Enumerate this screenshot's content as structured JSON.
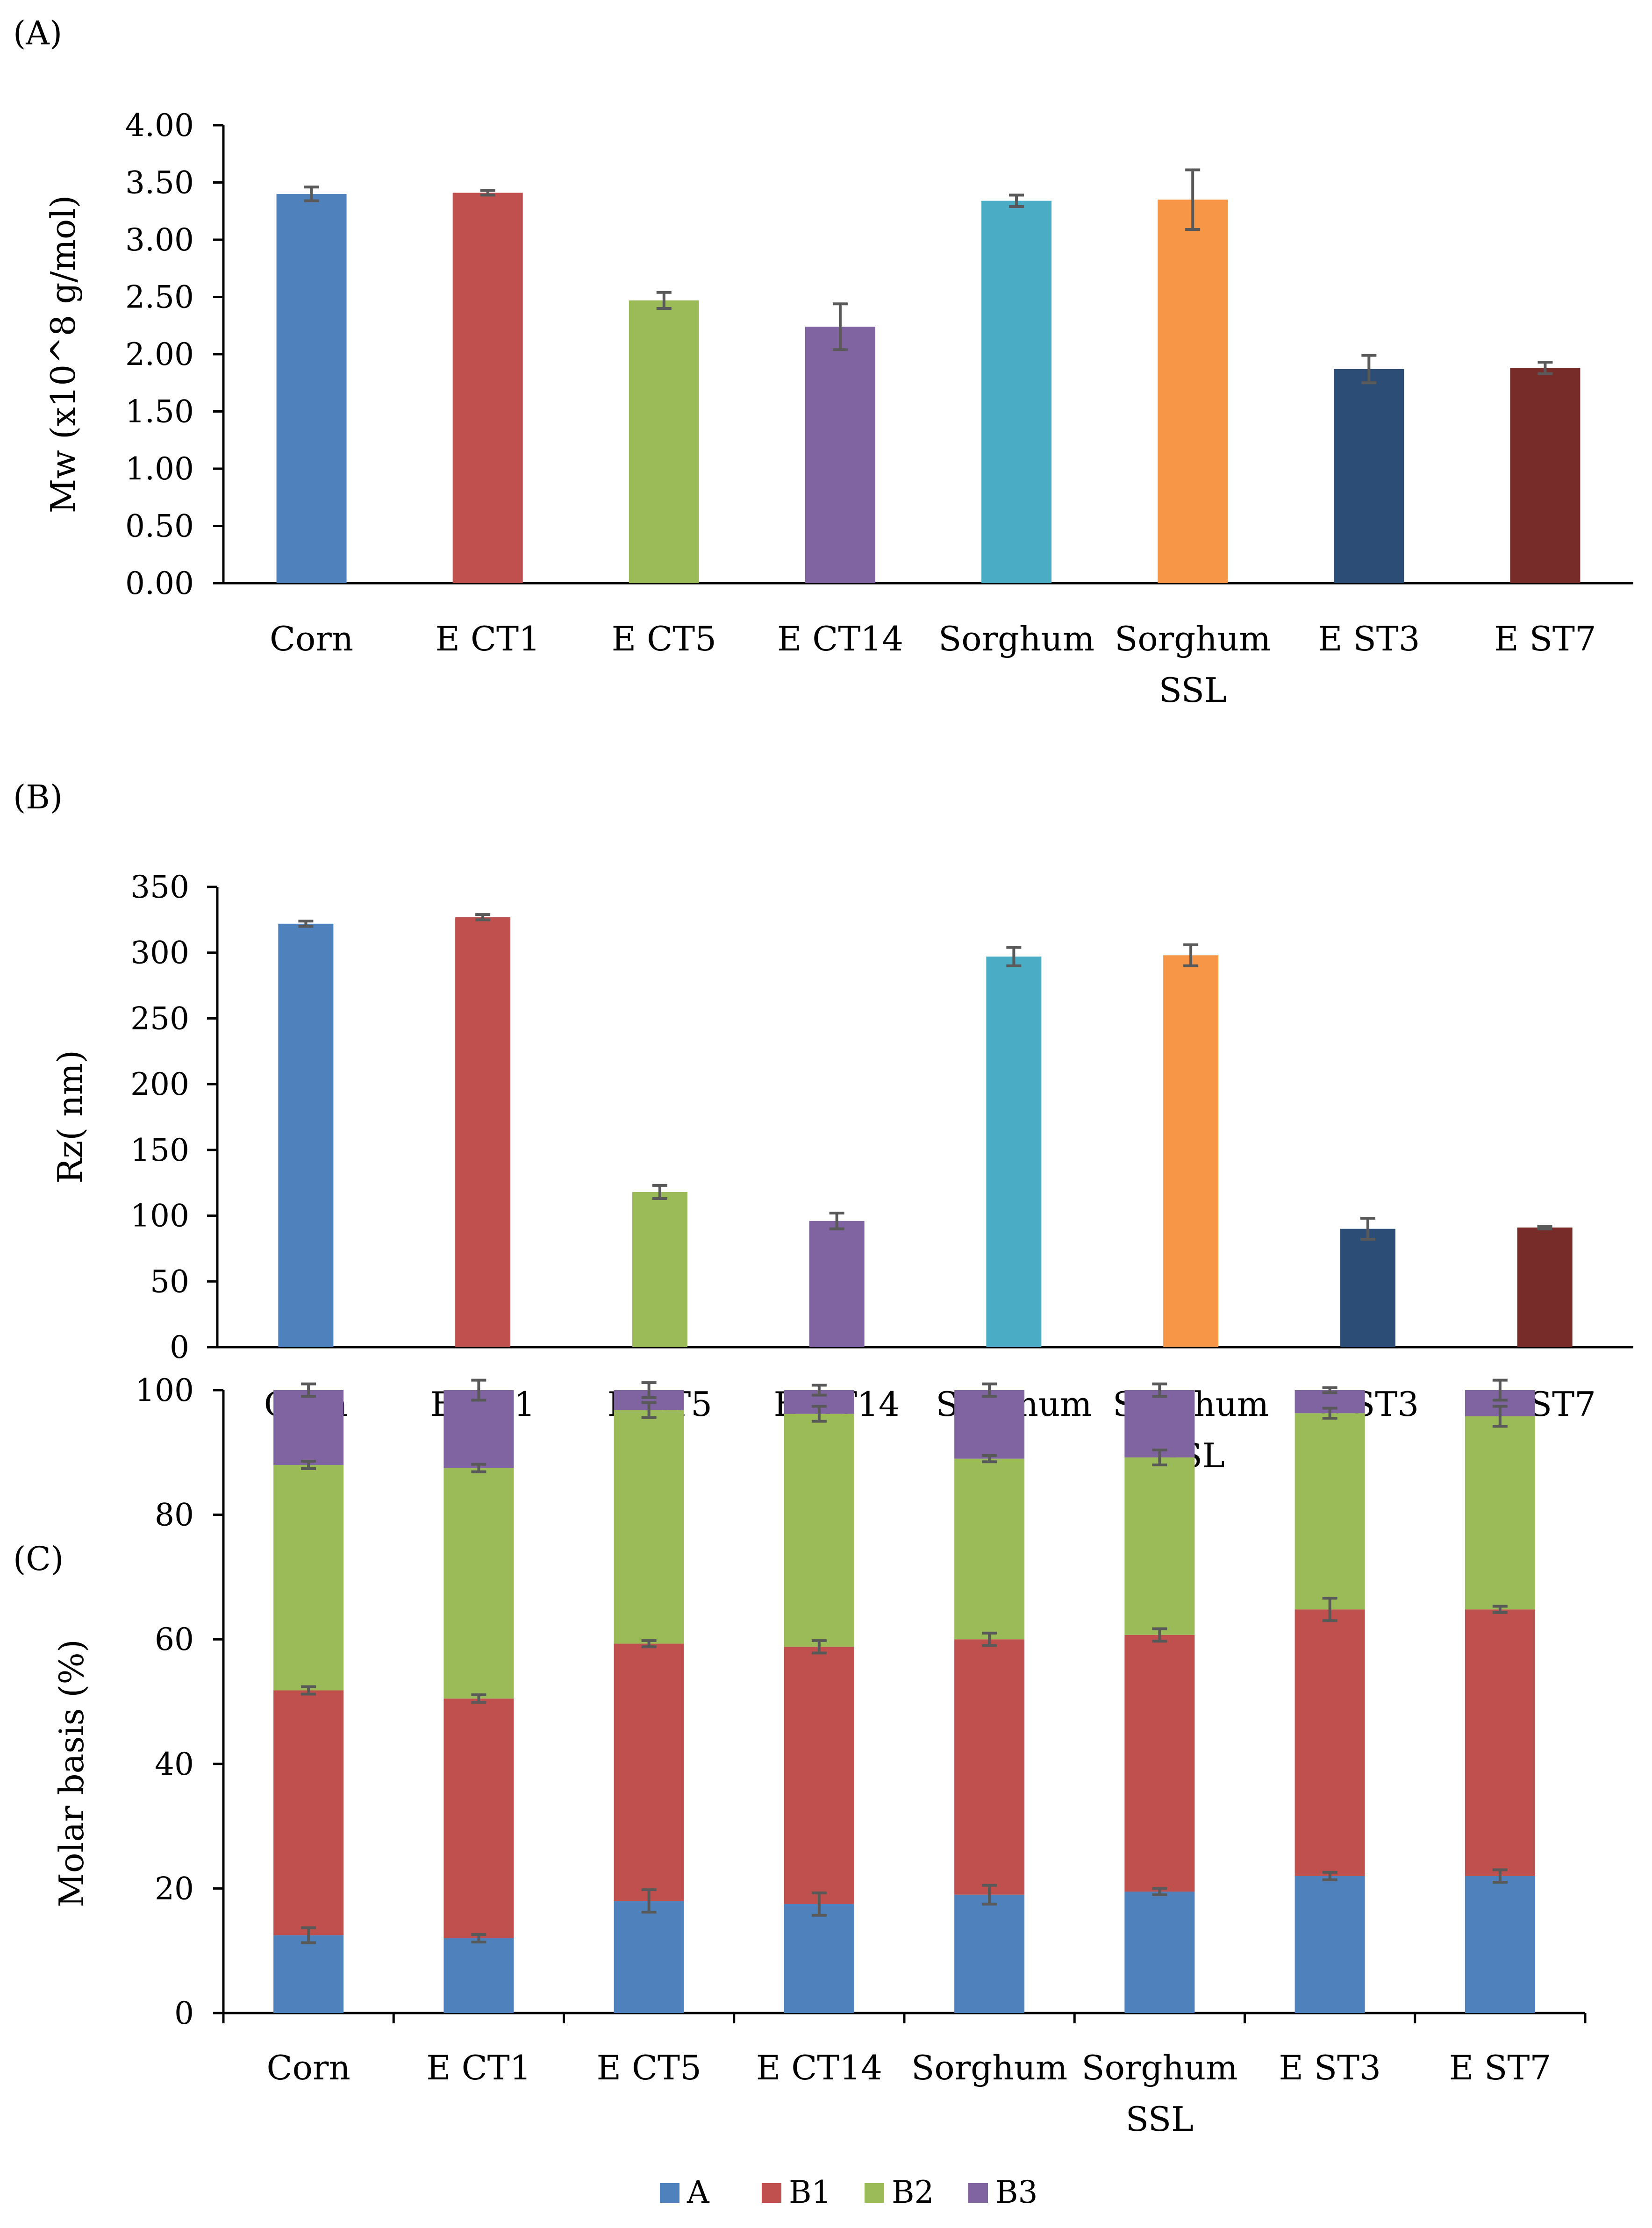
{
  "chart_data": [
    {
      "type": "bar",
      "panel": "(A)",
      "title": "",
      "xlabel": "",
      "ylabel": "Mw (x10^8 g/mol)",
      "ylim": [
        0,
        4
      ],
      "yticks": [
        0,
        0.5,
        1,
        1.5,
        2,
        2.5,
        3,
        3.5,
        4
      ],
      "ytick_labels": [
        "0.00",
        "0.50",
        "1.00",
        "1.50",
        "2.00",
        "2.50",
        "3.00",
        "3.50",
        "4.00"
      ],
      "categories": [
        [
          "Corn"
        ],
        [
          "E CT1"
        ],
        [
          "E CT5"
        ],
        [
          "E CT14"
        ],
        [
          "Sorghum"
        ],
        [
          "Sorghum",
          "SSL"
        ],
        [
          "E ST3"
        ],
        [
          "E ST7"
        ]
      ],
      "values": [
        3.4,
        3.41,
        2.47,
        2.24,
        3.34,
        3.35,
        1.87,
        1.88
      ],
      "errors": [
        0.06,
        0.02,
        0.07,
        0.2,
        0.05,
        0.26,
        0.12,
        0.05
      ],
      "colors": [
        "#4F81BD",
        "#C0504D",
        "#9BBB59",
        "#8064A2",
        "#4BACC6",
        "#F79646",
        "#2C4D75",
        "#772C2A"
      ],
      "grid": false
    },
    {
      "type": "bar",
      "panel": "(B)",
      "title": "",
      "xlabel": "",
      "ylabel": "Rz( nm)",
      "ylim": [
        0,
        350
      ],
      "yticks": [
        0,
        50,
        100,
        150,
        200,
        250,
        300,
        350
      ],
      "ytick_labels": [
        "0",
        "50",
        "100",
        "150",
        "200",
        "250",
        "300",
        "350"
      ],
      "categories": [
        [
          "Corn"
        ],
        [
          "E CT1"
        ],
        [
          "E CT5"
        ],
        [
          "E CT14"
        ],
        [
          "Sorghum"
        ],
        [
          "Sorghum",
          "SSL"
        ],
        [
          "E ST3"
        ],
        [
          "E ST7"
        ]
      ],
      "values": [
        322,
        327,
        118,
        96,
        297,
        298,
        90,
        91
      ],
      "errors": [
        2,
        2,
        5,
        6,
        7,
        8,
        8,
        1
      ],
      "colors": [
        "#4F81BD",
        "#C0504D",
        "#9BBB59",
        "#8064A2",
        "#4BACC6",
        "#F79646",
        "#2C4D75",
        "#772C2A"
      ],
      "grid": false
    },
    {
      "type": "stacked-bar",
      "panel": "(C)",
      "title": "",
      "xlabel": "",
      "ylabel": "Molar basis (%)",
      "ylim": [
        0,
        100
      ],
      "yticks": [
        0,
        20,
        40,
        60,
        80,
        100
      ],
      "ytick_labels": [
        "0",
        "20",
        "40",
        "60",
        "80",
        "100"
      ],
      "categories": [
        [
          "Corn"
        ],
        [
          "E CT1"
        ],
        [
          "E CT5"
        ],
        [
          "E CT14"
        ],
        [
          "Sorghum"
        ],
        [
          "Sorghum",
          "SSL"
        ],
        [
          "E ST3"
        ],
        [
          "E ST7"
        ]
      ],
      "series": [
        {
          "name": "A",
          "color": "#4F81BD",
          "values": [
            12.5,
            12.0,
            18.0,
            17.5,
            19.0,
            19.5,
            22.0,
            22.0
          ],
          "errors": [
            1.2,
            0.6,
            1.8,
            1.8,
            1.5,
            0.5,
            0.6,
            1.0
          ]
        },
        {
          "name": "B1",
          "color": "#C0504D",
          "values": [
            39.3,
            38.5,
            41.3,
            41.3,
            41.0,
            41.2,
            42.8,
            42.8
          ],
          "errors": [
            0.6,
            0.6,
            0.5,
            1.0,
            1.0,
            1.0,
            1.8,
            0.5
          ]
        },
        {
          "name": "B2",
          "color": "#9BBB59",
          "values": [
            36.2,
            37.0,
            37.5,
            37.4,
            29.0,
            28.5,
            31.5,
            31.0
          ],
          "errors": [
            0.6,
            0.6,
            1.2,
            1.2,
            0.5,
            1.2,
            0.8,
            1.6
          ]
        },
        {
          "name": "B3",
          "color": "#8064A2",
          "values": [
            12.0,
            12.5,
            3.2,
            3.8,
            11.0,
            10.8,
            3.7,
            4.2
          ],
          "errors": [
            1.0,
            1.6,
            1.2,
            0.8,
            1.0,
            1.0,
            0.4,
            1.6
          ]
        }
      ],
      "legend": "bottom",
      "grid": false
    }
  ]
}
